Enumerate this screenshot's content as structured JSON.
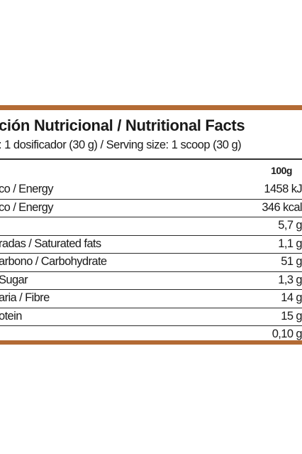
{
  "label": {
    "title": "ción Nutricional  / Nutritional Facts",
    "serving": ": 1 dosificador (30 g) / Serving size: 1 scoop (30 g)",
    "column_header": "100g",
    "rows": [
      {
        "name": "co / Energy",
        "value": "1458 kJ"
      },
      {
        "name": "co / Energy",
        "value": "346 kcal"
      },
      {
        "name": "",
        "value": "5,7 g"
      },
      {
        "name": "radas / Saturated fats",
        "value": "1,1 g"
      },
      {
        "name": "arbono / Carbohydrate",
        "value": "51 g"
      },
      {
        "name": "Sugar",
        "value": "1,3 g"
      },
      {
        "name": "aria / Fibre",
        "value": "14 g"
      },
      {
        "name": "otein",
        "value": "15 g"
      },
      {
        "name": "",
        "value": "0,10 g"
      }
    ]
  },
  "colors": {
    "accent_band": "#b36a34",
    "text": "#1a1a1a"
  }
}
